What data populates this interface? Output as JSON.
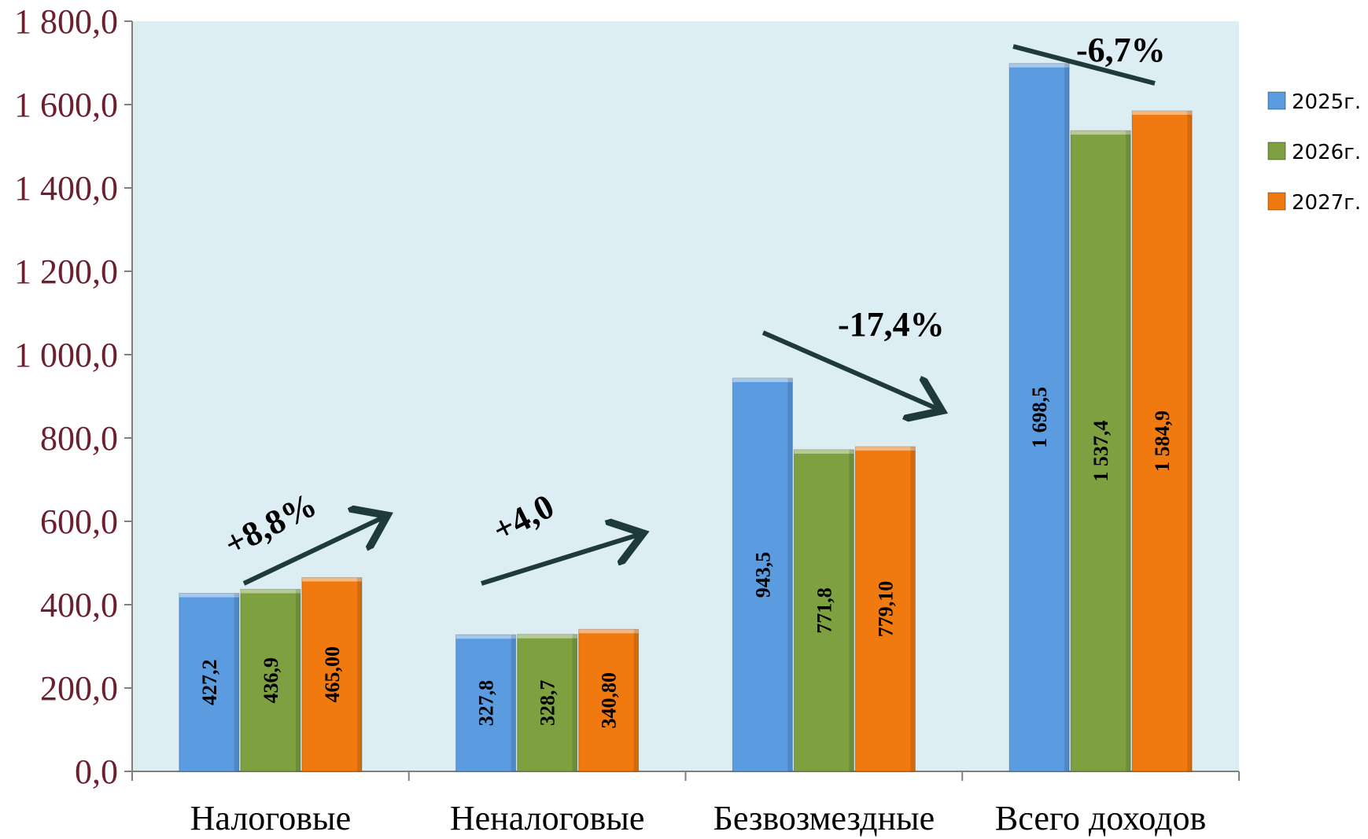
{
  "chart_data": {
    "type": "bar",
    "categories": [
      "Налоговые",
      "Неналоговые",
      "Безвозмездные",
      "Всего доходов"
    ],
    "series": [
      {
        "name": "2025г.",
        "color": "#5B9BE0",
        "values": [
          427.2,
          327.8,
          943.5,
          1698.5
        ],
        "labels": [
          "427,2",
          "327,8",
          "943,5",
          "1 698,5"
        ]
      },
      {
        "name": "2026г.",
        "color": "#7FA040",
        "values": [
          436.9,
          328.7,
          771.8,
          1537.4
        ],
        "labels": [
          "436,9",
          "328,7",
          "771,8",
          "1 537,4"
        ]
      },
      {
        "name": "2027г.",
        "color": "#F07A10",
        "values": [
          465.0,
          340.8,
          779.1,
          1584.9
        ],
        "labels": [
          "465,00",
          "340,80",
          "779,10",
          "1 584,9"
        ]
      }
    ],
    "ylim": [
      0,
      1800
    ],
    "yticks": [
      0,
      200,
      400,
      600,
      800,
      1000,
      1200,
      1400,
      1600,
      1800
    ],
    "ytick_labels": [
      "0,0",
      "200,0",
      "400,0",
      "600,0",
      "800,0",
      "1 000,0",
      "1 200,0",
      "1 400,0",
      "1 600,0",
      "1 800,0"
    ],
    "tick_color": "#6B1F2F",
    "plot_background": "#DCEEF4",
    "legend_position": "right",
    "grid": false,
    "annotations": [
      "+8,8%",
      "+4,0",
      "-17,4%",
      "-6,7%"
    ]
  }
}
